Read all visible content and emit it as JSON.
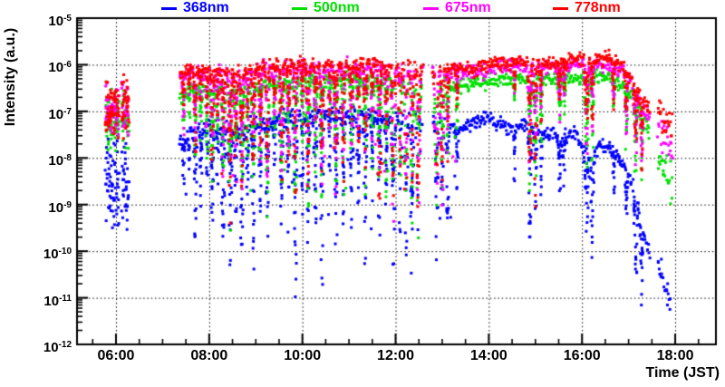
{
  "chart_data": {
    "type": "scatter",
    "marker": {
      "shape": "square",
      "size": 3
    },
    "axes": {
      "x": {
        "label": "Time (JST)",
        "range": [
          5.164,
          18.874
        ],
        "major_ticks": [
          {
            "t": 6,
            "label": "06:00"
          },
          {
            "t": 8,
            "label": "08:00"
          },
          {
            "t": 10,
            "label": "10:00"
          },
          {
            "t": 12,
            "label": "12:00"
          },
          {
            "t": 14,
            "label": "14:00"
          },
          {
            "t": 16,
            "label": "16:00"
          },
          {
            "t": 18,
            "label": "18:00"
          }
        ],
        "minor_step_hours": 0.5,
        "grid_hours": [
          6,
          8,
          10,
          12,
          14,
          16,
          18
        ]
      },
      "y": {
        "label": "Intensity (a.u.)",
        "scale": "log",
        "exponent_range": [
          -5,
          -12
        ],
        "tick_exponents": [
          -5,
          -6,
          -7,
          -8,
          -9,
          -10,
          -11,
          -12
        ],
        "grid_exponents": [
          -6,
          -7,
          -8,
          -9,
          -10,
          -11
        ]
      }
    },
    "grid": {
      "style": "dotted",
      "color": "#000000"
    },
    "frame_color": "#000000",
    "time_segments": [
      [
        5.78,
        6.07
      ],
      [
        6.13,
        6.28
      ],
      [
        7.37,
        12.59
      ],
      [
        12.8,
        17.45
      ],
      [
        17.63,
        17.95
      ]
    ],
    "cluster_range": [
      5.78,
      6.3
    ],
    "sparse_zones": [
      [
        11.95,
        13.2
      ]
    ],
    "dips": [
      [
        7.45,
        0.02,
        1.2
      ],
      [
        7.57,
        0.015,
        0.8
      ],
      [
        7.7,
        0.025,
        1.8
      ],
      [
        7.82,
        0.02,
        1.2
      ],
      [
        7.95,
        0.02,
        1.5
      ],
      [
        8.07,
        0.03,
        2.6
      ],
      [
        8.18,
        0.02,
        1.4
      ],
      [
        8.3,
        0.03,
        2.2
      ],
      [
        8.45,
        0.035,
        2.8
      ],
      [
        8.57,
        0.025,
        2.0
      ],
      [
        8.7,
        0.03,
        2.5
      ],
      [
        8.82,
        0.02,
        1.6
      ],
      [
        8.95,
        0.03,
        2.3
      ],
      [
        9.1,
        0.025,
        1.8
      ],
      [
        9.25,
        0.03,
        2.6
      ],
      [
        9.4,
        0.02,
        1.3
      ],
      [
        9.55,
        0.03,
        2.4
      ],
      [
        9.7,
        0.025,
        1.9
      ],
      [
        9.85,
        0.03,
        2.8
      ],
      [
        10.0,
        0.02,
        1.5
      ],
      [
        10.12,
        0.03,
        2.4
      ],
      [
        10.28,
        0.025,
        2.0
      ],
      [
        10.42,
        0.03,
        2.7
      ],
      [
        10.58,
        0.02,
        1.6
      ],
      [
        10.72,
        0.03,
        2.3
      ],
      [
        10.88,
        0.025,
        2.9
      ],
      [
        11.05,
        0.03,
        2.2
      ],
      [
        11.2,
        0.025,
        1.7
      ],
      [
        11.35,
        0.03,
        2.5
      ],
      [
        11.5,
        0.02,
        1.4
      ],
      [
        11.65,
        0.03,
        2.6
      ],
      [
        11.8,
        0.025,
        2.1
      ],
      [
        11.95,
        0.035,
        3.0
      ],
      [
        12.1,
        0.03,
        2.7
      ],
      [
        12.22,
        0.035,
        3.2
      ],
      [
        12.35,
        0.03,
        2.8
      ],
      [
        12.48,
        0.035,
        3.0
      ],
      [
        12.88,
        0.035,
        3.1
      ],
      [
        13.0,
        0.03,
        2.6
      ],
      [
        13.12,
        0.025,
        2.0
      ],
      [
        13.32,
        0.02,
        0.9
      ],
      [
        14.55,
        0.015,
        0.6
      ],
      [
        14.88,
        0.03,
        2.2
      ],
      [
        15.0,
        0.025,
        2.6
      ],
      [
        15.12,
        0.02,
        1.5
      ],
      [
        15.52,
        0.03,
        1.1
      ],
      [
        15.62,
        0.02,
        0.8
      ],
      [
        16.1,
        0.04,
        2.4
      ],
      [
        16.22,
        0.025,
        1.6
      ],
      [
        16.68,
        0.02,
        0.9
      ],
      [
        16.95,
        0.025,
        1.3
      ],
      [
        17.15,
        0.03,
        1.8
      ],
      [
        17.28,
        0.025,
        1.5
      ]
    ],
    "series": [
      {
        "name": "368nm",
        "color": "#0000ff",
        "spread": 0.08,
        "cluster_spread": 0.5,
        "end_spread": 0.13,
        "t_end": 17.9,
        "dip_boost": 1.05,
        "dip_add": 0.25,
        "extra_scatter": {
          "range": [
            7.4,
            13.3
          ],
          "prob": 0.06,
          "depth": [
            0.8,
            2.6
          ]
        },
        "envelope_points": [
          [
            5.78,
            -8.55
          ],
          [
            6.28,
            -8.45
          ],
          [
            7.37,
            -7.62
          ],
          [
            7.6,
            -7.45
          ],
          [
            8.0,
            -7.3
          ],
          [
            8.4,
            -7.35
          ],
          [
            8.7,
            -7.45
          ],
          [
            9.0,
            -7.25
          ],
          [
            9.5,
            -7.15
          ],
          [
            10.0,
            -7.1
          ],
          [
            11.0,
            -7.05
          ],
          [
            12.0,
            -7.1
          ],
          [
            12.6,
            -7.2
          ],
          [
            13.0,
            -7.25
          ],
          [
            13.35,
            -7.42
          ],
          [
            13.7,
            -7.2
          ],
          [
            14.2,
            -7.25
          ],
          [
            14.7,
            -7.35
          ],
          [
            15.1,
            -7.42
          ],
          [
            15.55,
            -7.55
          ],
          [
            15.85,
            -7.45
          ],
          [
            16.08,
            -7.85
          ],
          [
            16.2,
            -8.05
          ],
          [
            16.35,
            -7.75
          ],
          [
            16.6,
            -7.82
          ],
          [
            16.9,
            -8.1
          ],
          [
            17.1,
            -8.6
          ],
          [
            17.3,
            -9.5
          ],
          [
            17.45,
            -10.1
          ],
          [
            17.63,
            -10.15
          ],
          [
            17.9,
            -11.15
          ]
        ]
      },
      {
        "name": "500nm",
        "color": "#00e000",
        "spread": 0.07,
        "cluster_spread": 0.3,
        "end_spread": 0.28,
        "t_end": 17.95,
        "dip_boost": 1.0,
        "dip_add": 0,
        "extra_scatter": {
          "range": [
            7.4,
            13.3
          ],
          "prob": 0.03,
          "depth": [
            0.5,
            2.4
          ]
        },
        "envelope_points": [
          [
            5.78,
            -7.25
          ],
          [
            6.28,
            -7.15
          ],
          [
            7.37,
            -6.65
          ],
          [
            7.6,
            -6.5
          ],
          [
            8.0,
            -6.55
          ],
          [
            9.0,
            -6.45
          ],
          [
            10.0,
            -6.35
          ],
          [
            11.0,
            -6.3
          ],
          [
            12.0,
            -6.35
          ],
          [
            13.0,
            -6.4
          ],
          [
            13.6,
            -6.45
          ],
          [
            14.0,
            -6.35
          ],
          [
            15.0,
            -6.3
          ],
          [
            16.0,
            -6.3
          ],
          [
            16.6,
            -6.25
          ],
          [
            16.85,
            -6.4
          ],
          [
            17.1,
            -6.7
          ],
          [
            17.3,
            -7.12
          ],
          [
            17.45,
            -7.42
          ],
          [
            17.63,
            -8.05
          ],
          [
            17.95,
            -8.5
          ]
        ]
      },
      {
        "name": "675nm",
        "color": "#ff00ff",
        "spread": 0.08,
        "cluster_spread": 0.3,
        "end_spread": 0.22,
        "t_end": 17.95,
        "dip_boost": 1.0,
        "dip_add": 0,
        "extra_scatter": {
          "range": [
            7.4,
            13.3
          ],
          "prob": 0.03,
          "depth": [
            0.5,
            2.4
          ]
        },
        "envelope_points": [
          [
            5.78,
            -7.02
          ],
          [
            6.28,
            -6.92
          ],
          [
            7.37,
            -6.3
          ],
          [
            7.6,
            -6.13
          ],
          [
            8.0,
            -6.18
          ],
          [
            8.6,
            -6.23
          ],
          [
            9.2,
            -6.08
          ],
          [
            10.0,
            -6.02
          ],
          [
            10.6,
            -6.1
          ],
          [
            11.2,
            -6.02
          ],
          [
            12.0,
            -6.07
          ],
          [
            12.6,
            -6.15
          ],
          [
            13.2,
            -6.12
          ],
          [
            13.6,
            -6.17
          ],
          [
            14.0,
            -6.08
          ],
          [
            14.6,
            -6.02
          ],
          [
            15.2,
            -6.08
          ],
          [
            15.6,
            -6.02
          ],
          [
            16.1,
            -5.97
          ],
          [
            16.6,
            -5.99
          ],
          [
            16.85,
            -6.08
          ],
          [
            17.1,
            -6.45
          ],
          [
            17.3,
            -6.88
          ],
          [
            17.45,
            -7.1
          ],
          [
            17.63,
            -7.45
          ],
          [
            17.95,
            -7.85
          ]
        ]
      },
      {
        "name": "778nm",
        "color": "#ff0000",
        "spread": 0.07,
        "cluster_spread": 0.28,
        "end_spread": 0.18,
        "t_end": 17.95,
        "dip_boost": 1.0,
        "dip_add": 0,
        "extra_scatter": {
          "range": [
            7.4,
            13.3
          ],
          "prob": 0.03,
          "depth": [
            0.5,
            2.4
          ]
        },
        "envelope_points": [
          [
            5.78,
            -6.95
          ],
          [
            6.28,
            -6.85
          ],
          [
            7.37,
            -6.22
          ],
          [
            7.6,
            -6.05
          ],
          [
            8.0,
            -6.1
          ],
          [
            8.6,
            -6.15
          ],
          [
            9.2,
            -6.0
          ],
          [
            10.0,
            -5.95
          ],
          [
            10.6,
            -6.03
          ],
          [
            11.2,
            -5.95
          ],
          [
            12.0,
            -6.0
          ],
          [
            12.6,
            -6.08
          ],
          [
            13.2,
            -6.05
          ],
          [
            13.6,
            -6.1
          ],
          [
            14.0,
            -6.0
          ],
          [
            14.6,
            -5.93
          ],
          [
            15.2,
            -6.0
          ],
          [
            15.6,
            -5.93
          ],
          [
            16.1,
            -5.88
          ],
          [
            16.6,
            -5.9
          ],
          [
            16.85,
            -6.0
          ],
          [
            17.1,
            -6.35
          ],
          [
            17.3,
            -6.75
          ],
          [
            17.45,
            -6.92
          ],
          [
            17.63,
            -7.08
          ],
          [
            17.95,
            -7.3
          ]
        ]
      }
    ]
  }
}
